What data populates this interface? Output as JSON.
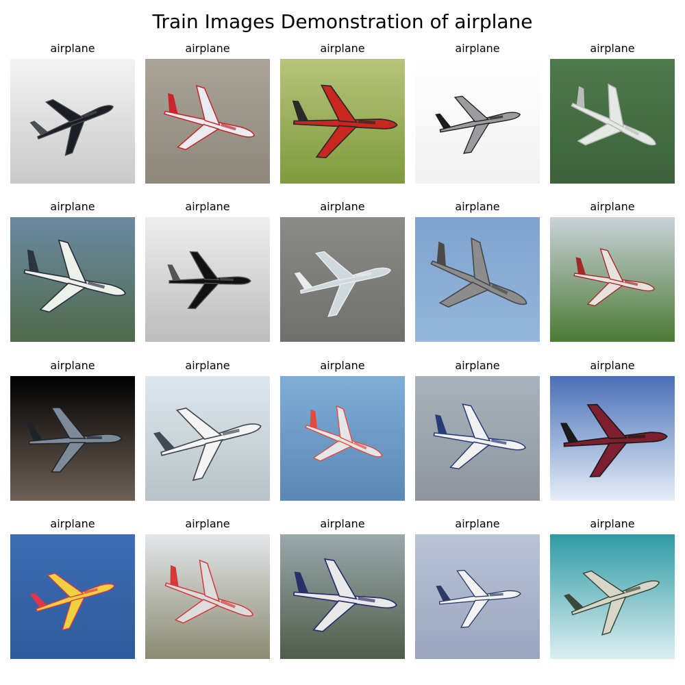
{
  "title": "Train Images Demonstration of airplane",
  "images": [
    {
      "label": "airplane",
      "bg": [
        "#f3f3f3",
        "#c9c9c9"
      ],
      "plane": "#1b1e22",
      "accent": "#4a4f55",
      "icon": "stealth-airplane-icon"
    },
    {
      "label": "airplane",
      "bg": [
        "#a9a398",
        "#8d877c"
      ],
      "plane": "#e9ecf1",
      "accent": "#c8262a",
      "icon": "fighter-jet-icon"
    },
    {
      "label": "airplane",
      "bg": [
        "#b7c47a",
        "#7e9a3c"
      ],
      "plane": "#c8271f",
      "accent": "#2a2a2a",
      "icon": "red-biplane-icon"
    },
    {
      "label": "airplane",
      "bg": [
        "#ffffff",
        "#f1f1f1"
      ],
      "plane": "#9a9ca0",
      "accent": "#1c1c1c",
      "icon": "propeller-plane-icon"
    },
    {
      "label": "airplane",
      "bg": [
        "#4f7a4c",
        "#3c6139"
      ],
      "plane": "#e6e8e6",
      "accent": "#b9bcb9",
      "icon": "white-jet-icon"
    },
    {
      "label": "airplane",
      "bg": [
        "#6b8aa3",
        "#4f6a4a"
      ],
      "plane": "#eef0ea",
      "accent": "#2b3340",
      "icon": "airliner-icon"
    },
    {
      "label": "airplane",
      "bg": [
        "#eeeeee",
        "#bcbcbc"
      ],
      "plane": "#111111",
      "accent": "#555555",
      "icon": "dark-plane-icon"
    },
    {
      "label": "airplane",
      "bg": [
        "#8a8a86",
        "#6f706c"
      ],
      "plane": "#cfd8dc",
      "accent": "#e9ecee",
      "icon": "wing-closeup-icon"
    },
    {
      "label": "airplane",
      "bg": [
        "#7ea3cf",
        "#94b6dc"
      ],
      "plane": "#8c8c8c",
      "accent": "#4a4a4a",
      "icon": "seaplane-icon"
    },
    {
      "label": "airplane",
      "bg": [
        "#c9d2d9",
        "#4b7a34"
      ],
      "plane": "#e7e2dd",
      "accent": "#a3282a",
      "icon": "white-biplane-icon"
    },
    {
      "label": "airplane",
      "bg": [
        "#000000",
        "#6e6157"
      ],
      "plane": "#7c8a99",
      "accent": "#1f242a",
      "icon": "jet-topview-icon"
    },
    {
      "label": "airplane",
      "bg": [
        "#dfe7ee",
        "#b8c2c6"
      ],
      "plane": "#f5f5f5",
      "accent": "#3f4a52",
      "icon": "jumbo-jet-icon"
    },
    {
      "label": "airplane",
      "bg": [
        "#7eaed8",
        "#5b87b4"
      ],
      "plane": "#e6e6e6",
      "accent": "#e6473f",
      "icon": "airliner-front-icon"
    },
    {
      "label": "airplane",
      "bg": [
        "#a9b3bd",
        "#8e959c"
      ],
      "plane": "#f1f1f1",
      "accent": "#263b77",
      "icon": "landing-jet-icon"
    },
    {
      "label": "airplane",
      "bg": [
        "#4a6fb8",
        "#e5eef8"
      ],
      "plane": "#7d1f2e",
      "accent": "#1b1b1b",
      "icon": "airliner-sky-icon"
    },
    {
      "label": "airplane",
      "bg": [
        "#3d6db3",
        "#2d5a9e"
      ],
      "plane": "#f0d240",
      "accent": "#e0364a",
      "icon": "colorful-plane-icon"
    },
    {
      "label": "airplane",
      "bg": [
        "#e3e6ea",
        "#8a8a70"
      ],
      "plane": "#dcdcdc",
      "accent": "#d43a3a",
      "icon": "blimp-icon"
    },
    {
      "label": "airplane",
      "bg": [
        "#9aa8ad",
        "#4f5d4a"
      ],
      "plane": "#e9e9e9",
      "accent": "#2a2f6a",
      "icon": "taxiing-jet-icon"
    },
    {
      "label": "airplane",
      "bg": [
        "#b9c2d6",
        "#9aa6c0"
      ],
      "plane": "#f3f3f3",
      "accent": "#2a3b66",
      "icon": "climbing-jet-icon"
    },
    {
      "label": "airplane",
      "bg": [
        "#2f9aa4",
        "#dbeff2"
      ],
      "plane": "#d8d6c8",
      "accent": "#3a4a3a",
      "icon": "jet-clouds-icon"
    }
  ]
}
